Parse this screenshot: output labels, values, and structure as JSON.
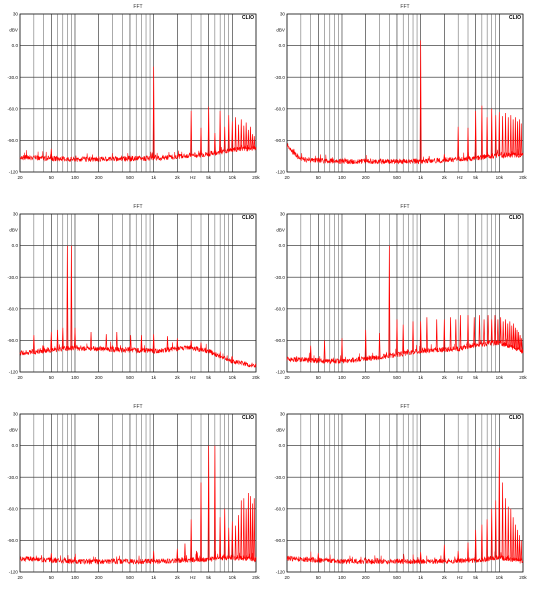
{
  "figure": {
    "badge": "CLIO",
    "y_unit": "dBV",
    "x_unit": "Hz"
  },
  "chart_data": [
    {
      "type": "line",
      "title": "FFT",
      "ylabel": "dBV",
      "xlabel": "Hz",
      "xscale": "log",
      "xlim": [
        20,
        20000
      ],
      "ylim": [
        -120,
        30
      ],
      "xticks": [
        "20",
        "50",
        "100",
        "200",
        "500",
        "1k",
        "2k",
        "5k",
        "10k",
        "20k"
      ],
      "yticks": [
        "30",
        "0.0",
        "-30.0",
        "-60.0",
        "-90.0",
        "-120"
      ],
      "series": [
        {
          "color": "#ff0000",
          "noise": {
            "x": [
              20,
              100,
              1000,
              5000,
              10000,
              20000
            ],
            "y": [
              -106,
              -108,
              -107,
              -103,
              -99,
              -97
            ]
          },
          "peaks": [
            {
              "x": 1000,
              "y": -20
            },
            {
              "x": 2000,
              "y": -104
            },
            {
              "x": 3000,
              "y": -62
            },
            {
              "x": 4000,
              "y": -78
            },
            {
              "x": 5000,
              "y": -58
            },
            {
              "x": 6000,
              "y": -83
            },
            {
              "x": 7000,
              "y": -62
            },
            {
              "x": 8000,
              "y": -77
            },
            {
              "x": 9000,
              "y": -66
            },
            {
              "x": 10000,
              "y": -72
            },
            {
              "x": 11000,
              "y": -68
            },
            {
              "x": 12000,
              "y": -75
            },
            {
              "x": 13000,
              "y": -70
            },
            {
              "x": 14000,
              "y": -76
            },
            {
              "x": 15000,
              "y": -73
            },
            {
              "x": 16000,
              "y": -80
            },
            {
              "x": 17000,
              "y": -77
            },
            {
              "x": 18000,
              "y": -84
            },
            {
              "x": 19000,
              "y": -86
            },
            {
              "x": 50,
              "y": -98
            }
          ]
        }
      ]
    },
    {
      "type": "line",
      "title": "FFT",
      "ylabel": "dBV",
      "xlabel": "Hz",
      "xscale": "log",
      "xlim": [
        20,
        20000
      ],
      "ylim": [
        -120,
        30
      ],
      "xticks": [
        "20",
        "50",
        "100",
        "200",
        "500",
        "1k",
        "2k",
        "5k",
        "10k",
        "20k"
      ],
      "yticks": [
        "30",
        "0.0",
        "-30.0",
        "-60.0",
        "-90.0",
        "-120"
      ],
      "series": [
        {
          "color": "#ff0000",
          "noise": {
            "x": [
              20,
              30,
              100,
              1000,
              5000,
              10000,
              20000
            ],
            "y": [
              -96,
              -108,
              -110,
              -110,
              -107,
              -104,
              -104
            ]
          },
          "peaks": [
            {
              "x": 1000,
              "y": 5
            },
            {
              "x": 2000,
              "y": -103
            },
            {
              "x": 3000,
              "y": -77
            },
            {
              "x": 4000,
              "y": -78
            },
            {
              "x": 5000,
              "y": -62
            },
            {
              "x": 6000,
              "y": -57
            },
            {
              "x": 7000,
              "y": -68
            },
            {
              "x": 8000,
              "y": -60
            },
            {
              "x": 9000,
              "y": -66
            },
            {
              "x": 10000,
              "y": -63
            },
            {
              "x": 11000,
              "y": -67
            },
            {
              "x": 12000,
              "y": -64
            },
            {
              "x": 13000,
              "y": -68
            },
            {
              "x": 14000,
              "y": -66
            },
            {
              "x": 15000,
              "y": -70
            },
            {
              "x": 16000,
              "y": -68
            },
            {
              "x": 17000,
              "y": -72
            },
            {
              "x": 18000,
              "y": -70
            },
            {
              "x": 19000,
              "y": -74
            }
          ]
        }
      ]
    },
    {
      "type": "line",
      "title": "FFT",
      "ylabel": "dBV",
      "xlabel": "Hz",
      "xscale": "log",
      "xlim": [
        20,
        20000
      ],
      "ylim": [
        -120,
        30
      ],
      "xticks": [
        "20",
        "50",
        "100",
        "200",
        "500",
        "1k",
        "2k",
        "5k",
        "10k",
        "20k"
      ],
      "yticks": [
        "30",
        "0.0",
        "-30.0",
        "-60.0",
        "-90.0",
        "-120"
      ],
      "series": [
        {
          "color": "#ff0000",
          "noise": {
            "x": [
              20,
              100,
              1000,
              3000,
              5000,
              10000,
              20000
            ],
            "y": [
              -102,
              -97,
              -100,
              -97,
              -100,
              -110,
              -114
            ]
          },
          "peaks": [
            {
              "x": 80,
              "y": 0
            },
            {
              "x": 90,
              "y": 0
            },
            {
              "x": 30,
              "y": -85
            },
            {
              "x": 40,
              "y": -95
            },
            {
              "x": 50,
              "y": -82
            },
            {
              "x": 60,
              "y": -80
            },
            {
              "x": 70,
              "y": -78
            },
            {
              "x": 100,
              "y": -78
            },
            {
              "x": 160,
              "y": -82
            },
            {
              "x": 250,
              "y": -84
            },
            {
              "x": 340,
              "y": -82
            },
            {
              "x": 510,
              "y": -85
            },
            {
              "x": 700,
              "y": -85
            },
            {
              "x": 1000,
              "y": -84
            },
            {
              "x": 1500,
              "y": -86
            },
            {
              "x": 2000,
              "y": -88
            },
            {
              "x": 3000,
              "y": -90
            },
            {
              "x": 4000,
              "y": -92
            }
          ]
        }
      ]
    },
    {
      "type": "line",
      "title": "FFT",
      "ylabel": "dBV",
      "xlabel": "Hz",
      "xscale": "log",
      "xlim": [
        20,
        20000
      ],
      "ylim": [
        -120,
        30
      ],
      "xticks": [
        "20",
        "50",
        "100",
        "200",
        "500",
        "1k",
        "2k",
        "5k",
        "10k",
        "20k"
      ],
      "yticks": [
        "30",
        "0.0",
        "-30.0",
        "-60.0",
        "-90.0",
        "-120"
      ],
      "series": [
        {
          "color": "#ff0000",
          "noise": {
            "x": [
              20,
              100,
              300,
              1000,
              3000,
              5000,
              10000,
              20000
            ],
            "y": [
              -108,
              -110,
              -106,
              -100,
              -98,
              -94,
              -92,
              -100
            ]
          },
          "peaks": [
            {
              "x": 400,
              "y": 0
            },
            {
              "x": 40,
              "y": -95
            },
            {
              "x": 60,
              "y": -90
            },
            {
              "x": 100,
              "y": -88
            },
            {
              "x": 200,
              "y": -80
            },
            {
              "x": 300,
              "y": -83
            },
            {
              "x": 500,
              "y": -70
            },
            {
              "x": 600,
              "y": -75
            },
            {
              "x": 800,
              "y": -72
            },
            {
              "x": 1000,
              "y": -72
            },
            {
              "x": 1200,
              "y": -68
            },
            {
              "x": 1600,
              "y": -70
            },
            {
              "x": 2000,
              "y": -70
            },
            {
              "x": 2400,
              "y": -68
            },
            {
              "x": 2800,
              "y": -70
            },
            {
              "x": 3200,
              "y": -66
            },
            {
              "x": 4000,
              "y": -66
            },
            {
              "x": 4800,
              "y": -68
            },
            {
              "x": 5600,
              "y": -66
            },
            {
              "x": 6400,
              "y": -70
            },
            {
              "x": 7200,
              "y": -66
            },
            {
              "x": 8000,
              "y": -70
            },
            {
              "x": 8800,
              "y": -66
            },
            {
              "x": 9600,
              "y": -70
            },
            {
              "x": 10400,
              "y": -68
            },
            {
              "x": 11200,
              "y": -72
            },
            {
              "x": 12000,
              "y": -70
            },
            {
              "x": 12800,
              "y": -74
            },
            {
              "x": 13600,
              "y": -72
            },
            {
              "x": 14400,
              "y": -76
            },
            {
              "x": 15200,
              "y": -74
            },
            {
              "x": 16000,
              "y": -78
            },
            {
              "x": 16800,
              "y": -80
            },
            {
              "x": 17600,
              "y": -82
            },
            {
              "x": 18400,
              "y": -85
            },
            {
              "x": 19200,
              "y": -88
            }
          ]
        }
      ]
    },
    {
      "type": "line",
      "title": "FFT",
      "ylabel": "dBV",
      "xlabel": "Hz",
      "xscale": "log",
      "xlim": [
        20,
        20000
      ],
      "ylim": [
        -120,
        30
      ],
      "xticks": [
        "20",
        "50",
        "100",
        "200",
        "500",
        "1k",
        "2k",
        "5k",
        "10k",
        "20k"
      ],
      "yticks": [
        "30",
        "0.0",
        "-30.0",
        "-60.0",
        "-90.0",
        "-120"
      ],
      "series": [
        {
          "color": "#ff0000",
          "noise": {
            "x": [
              20,
              100,
              1000,
              5000,
              10000,
              20000
            ],
            "y": [
              -107,
              -110,
              -110,
              -108,
              -106,
              -108
            ]
          },
          "peaks": [
            {
              "x": 5000,
              "y": 0
            },
            {
              "x": 6000,
              "y": 0
            },
            {
              "x": 1000,
              "y": -100
            },
            {
              "x": 2000,
              "y": -98
            },
            {
              "x": 3000,
              "y": -70
            },
            {
              "x": 4000,
              "y": -35
            },
            {
              "x": 7000,
              "y": -68
            },
            {
              "x": 8000,
              "y": -60
            },
            {
              "x": 9000,
              "y": -78
            },
            {
              "x": 10000,
              "y": -72
            },
            {
              "x": 11000,
              "y": -76
            },
            {
              "x": 12000,
              "y": -66
            },
            {
              "x": 13000,
              "y": -52
            },
            {
              "x": 14000,
              "y": -50
            },
            {
              "x": 15000,
              "y": -60
            },
            {
              "x": 16000,
              "y": -45
            },
            {
              "x": 17000,
              "y": -48
            },
            {
              "x": 18000,
              "y": -55
            },
            {
              "x": 19000,
              "y": -50
            },
            {
              "x": 50,
              "y": -102
            },
            {
              "x": 2500,
              "y": -93
            },
            {
              "x": 3500,
              "y": -100
            }
          ]
        }
      ]
    },
    {
      "type": "line",
      "title": "FFT",
      "ylabel": "dBV",
      "xlabel": "Hz",
      "xscale": "log",
      "xlim": [
        20,
        20000
      ],
      "ylim": [
        -120,
        30
      ],
      "xticks": [
        "20",
        "50",
        "100",
        "200",
        "500",
        "1k",
        "2k",
        "5k",
        "10k",
        "20k"
      ],
      "yticks": [
        "30",
        "0.0",
        "-30.0",
        "-60.0",
        "-90.0",
        "-120"
      ],
      "series": [
        {
          "color": "#ff0000",
          "noise": {
            "x": [
              20,
              100,
              1000,
              5000,
              10000,
              20000
            ],
            "y": [
              -107,
              -110,
              -110,
              -109,
              -106,
              -110
            ]
          },
          "peaks": [
            {
              "x": 10000,
              "y": -2
            },
            {
              "x": 11000,
              "y": -35
            },
            {
              "x": 1000,
              "y": -101
            },
            {
              "x": 2000,
              "y": -94
            },
            {
              "x": 3000,
              "y": -100
            },
            {
              "x": 4000,
              "y": -92
            },
            {
              "x": 5000,
              "y": -80
            },
            {
              "x": 6000,
              "y": -75
            },
            {
              "x": 7000,
              "y": -70
            },
            {
              "x": 8000,
              "y": -60
            },
            {
              "x": 9000,
              "y": -52
            },
            {
              "x": 12000,
              "y": -50
            },
            {
              "x": 13000,
              "y": -58
            },
            {
              "x": 14000,
              "y": -60
            },
            {
              "x": 15000,
              "y": -68
            },
            {
              "x": 16000,
              "y": -75
            },
            {
              "x": 17000,
              "y": -80
            },
            {
              "x": 18000,
              "y": -85
            },
            {
              "x": 19000,
              "y": -90
            },
            {
              "x": 50,
              "y": -102
            }
          ]
        }
      ]
    }
  ]
}
